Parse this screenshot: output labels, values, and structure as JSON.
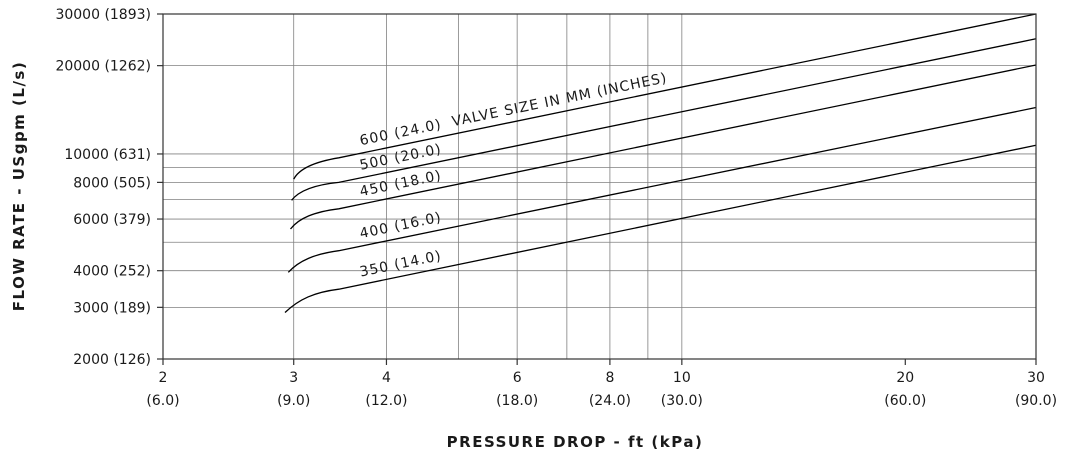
{
  "chart_data": {
    "type": "line",
    "x_scale": "log",
    "y_scale": "log",
    "xlabel": "PRESSURE DROP - ft (kPa)",
    "ylabel": "FLOW RATE - USgpm (L/s)",
    "xlim": [
      2,
      30
    ],
    "ylim": [
      2000,
      30000
    ],
    "grid": true,
    "x_ticks": [
      {
        "value": 2,
        "label": "2",
        "sub": "(6.0)"
      },
      {
        "value": 3,
        "label": "3",
        "sub": "(9.0)"
      },
      {
        "value": 4,
        "label": "4",
        "sub": "(12.0)"
      },
      {
        "value": 6,
        "label": "6",
        "sub": "(18.0)"
      },
      {
        "value": 8,
        "label": "8",
        "sub": "(24.0)"
      },
      {
        "value": 10,
        "label": "10",
        "sub": "(30.0)"
      },
      {
        "value": 20,
        "label": "20",
        "sub": "(60.0)"
      },
      {
        "value": 30,
        "label": "30",
        "sub": "(90.0)"
      }
    ],
    "x_grid": [
      3,
      4,
      5,
      6,
      7,
      8,
      9,
      10
    ],
    "y_ticks": [
      {
        "value": 2000,
        "label": "2000 (126)"
      },
      {
        "value": 3000,
        "label": "3000 (189)"
      },
      {
        "value": 4000,
        "label": "4000 (252)"
      },
      {
        "value": 6000,
        "label": "6000 (379)"
      },
      {
        "value": 8000,
        "label": "8000 (505)"
      },
      {
        "value": 10000,
        "label": "10000 (631)"
      },
      {
        "value": 20000,
        "label": "20000 (1262)"
      },
      {
        "value": 30000,
        "label": "30000 (1893)"
      }
    ],
    "y_grid": [
      3000,
      4000,
      5000,
      6000,
      7000,
      8000,
      9000,
      10000,
      20000
    ],
    "series": [
      {
        "name": "600 (24.0)  VALVE SIZE IN MM (INCHES)",
        "x": [
          3.0,
          3.05,
          3.2,
          3.45,
          30.0
        ],
        "y": [
          8200,
          8900,
          9400,
          9700,
          30000
        ]
      },
      {
        "name": "500 (20.0)",
        "x": [
          2.98,
          3.05,
          3.2,
          3.45,
          30.0
        ],
        "y": [
          6950,
          7500,
          7850,
          8000,
          24700
        ]
      },
      {
        "name": "450 (18.0)",
        "x": [
          2.97,
          3.05,
          3.2,
          3.45,
          30.0
        ],
        "y": [
          5550,
          6050,
          6350,
          6500,
          20100
        ]
      },
      {
        "name": "400 (16.0)",
        "x": [
          2.95,
          3.05,
          3.2,
          3.45,
          30.0
        ],
        "y": [
          3950,
          4330,
          4560,
          4680,
          14400
        ]
      },
      {
        "name": "350 (14.0)",
        "x": [
          2.92,
          3.05,
          3.2,
          3.45,
          30.0
        ],
        "y": [
          2880,
          3200,
          3380,
          3460,
          10700
        ]
      }
    ]
  }
}
